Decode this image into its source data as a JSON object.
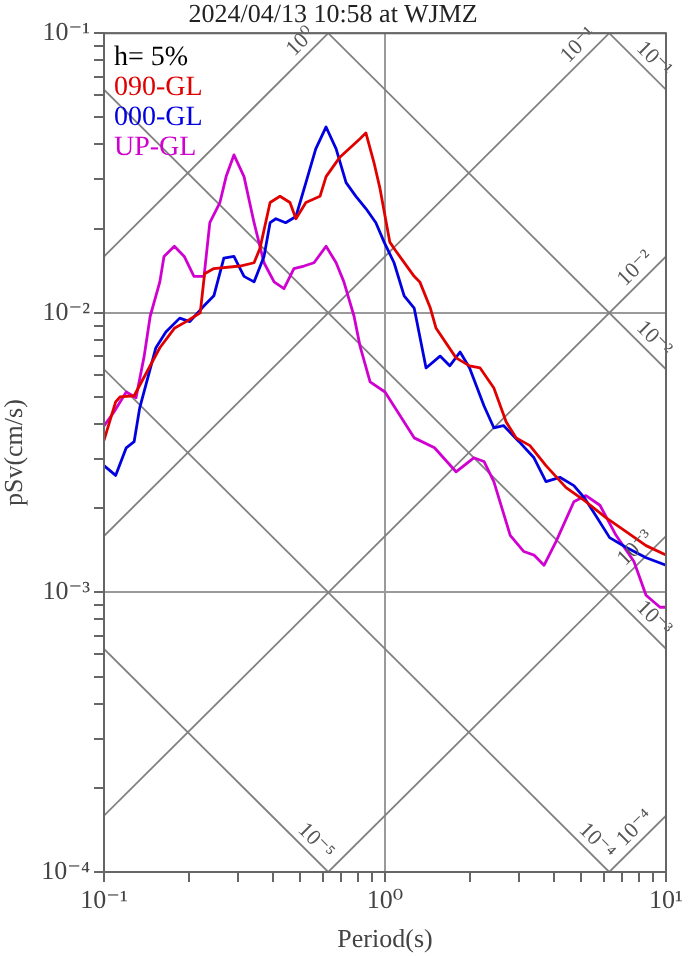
{
  "chart_data": {
    "type": "line",
    "title": "2024/04/13 10:58 at WJMZ",
    "xlabel": "Period(s)",
    "ylabel": "pSv(cm/s)",
    "legend_title": "h= 5%",
    "legend": "top left",
    "log": "xy",
    "grid": true,
    "marker": "none",
    "line_style": "solid",
    "xlim": [
      0.1,
      10
    ],
    "ylim": [
      0.0001,
      0.1
    ],
    "xticks": [
      {
        "value": 0.1,
        "label": "10⁻¹"
      },
      {
        "value": 0.2,
        "label": null
      },
      {
        "value": 0.3,
        "label": null
      },
      {
        "value": 0.4,
        "label": null
      },
      {
        "value": 0.5,
        "label": null
      },
      {
        "value": 0.6,
        "label": null
      },
      {
        "value": 0.7,
        "label": null
      },
      {
        "value": 0.8,
        "label": null
      },
      {
        "value": 0.9,
        "label": null
      },
      {
        "value": 1,
        "label": "10⁰"
      },
      {
        "value": 2,
        "label": null
      },
      {
        "value": 3,
        "label": null
      },
      {
        "value": 4,
        "label": null
      },
      {
        "value": 5,
        "label": null
      },
      {
        "value": 6,
        "label": null
      },
      {
        "value": 7,
        "label": null
      },
      {
        "value": 8,
        "label": null
      },
      {
        "value": 9,
        "label": null
      },
      {
        "value": 10,
        "label": "10¹"
      }
    ],
    "yticks": [
      {
        "value": 0.0001,
        "label": "10⁻⁴"
      },
      {
        "value": 0.0002,
        "label": null
      },
      {
        "value": 0.0003,
        "label": null
      },
      {
        "value": 0.0004,
        "label": null
      },
      {
        "value": 0.0005,
        "label": null
      },
      {
        "value": 0.0006,
        "label": null
      },
      {
        "value": 0.0007,
        "label": null
      },
      {
        "value": 0.0008,
        "label": null
      },
      {
        "value": 0.0009,
        "label": null
      },
      {
        "value": 0.001,
        "label": "10⁻³"
      },
      {
        "value": 0.002,
        "label": null
      },
      {
        "value": 0.003,
        "label": null
      },
      {
        "value": 0.004,
        "label": null
      },
      {
        "value": 0.005,
        "label": null
      },
      {
        "value": 0.006,
        "label": null
      },
      {
        "value": 0.007,
        "label": null
      },
      {
        "value": 0.008,
        "label": null
      },
      {
        "value": 0.009,
        "label": null
      },
      {
        "value": 0.01,
        "label": "10⁻²"
      },
      {
        "value": 0.02,
        "label": null
      },
      {
        "value": 0.03,
        "label": null
      },
      {
        "value": 0.04,
        "label": null
      },
      {
        "value": 0.05,
        "label": null
      },
      {
        "value": 0.06,
        "label": null
      },
      {
        "value": 0.07,
        "label": null
      },
      {
        "value": 0.08,
        "label": null
      },
      {
        "value": 0.09,
        "label": null
      },
      {
        "value": 0.1,
        "label": "10⁻¹"
      }
    ],
    "series": [
      {
        "name": "090-GL",
        "color": "#e00000",
        "x": [
          0.1,
          0.11,
          0.114,
          0.128,
          0.158,
          0.178,
          0.196,
          0.22,
          0.228,
          0.246,
          0.305,
          0.342,
          0.359,
          0.39,
          0.423,
          0.459,
          0.482,
          0.523,
          0.587,
          0.617,
          0.692,
          0.815,
          0.855,
          0.914,
          0.96,
          1.04,
          1.09,
          1.27,
          1.33,
          1.45,
          1.52,
          1.79,
          2.0,
          2.18,
          2.44,
          2.7,
          2.93,
          3.28,
          3.74,
          4.41,
          5.19,
          6.11,
          7.21,
          8.49,
          10
        ],
        "values": [
          0.0035,
          0.0048,
          0.005,
          0.00505,
          0.0075,
          0.0088,
          0.0093,
          0.01,
          0.0138,
          0.0144,
          0.0147,
          0.0151,
          0.017,
          0.0248,
          0.0261,
          0.0248,
          0.0217,
          0.0248,
          0.0261,
          0.0307,
          0.0361,
          0.0419,
          0.044,
          0.0344,
          0.0278,
          0.0179,
          0.0167,
          0.0135,
          0.0129,
          0.0104,
          0.0088,
          0.0069,
          0.00646,
          0.00635,
          0.00538,
          0.00407,
          0.00357,
          0.00335,
          0.00284,
          0.00237,
          0.00211,
          0.00185,
          0.00165,
          0.00147,
          0.00136
        ]
      },
      {
        "name": "000-GL",
        "color": "#0000e0",
        "x": [
          0.1,
          0.11,
          0.12,
          0.128,
          0.134,
          0.153,
          0.166,
          0.186,
          0.202,
          0.227,
          0.246,
          0.267,
          0.29,
          0.315,
          0.342,
          0.371,
          0.39,
          0.409,
          0.443,
          0.482,
          0.523,
          0.567,
          0.617,
          0.67,
          0.727,
          0.788,
          0.855,
          0.928,
          0.993,
          1.077,
          1.17,
          1.27,
          1.4,
          1.57,
          1.7,
          1.85,
          2.0,
          2.25,
          2.44,
          2.64,
          3.0,
          3.39,
          3.74,
          4.19,
          4.7,
          5.12,
          5.5,
          6.3,
          7.2,
          8.5,
          10
        ],
        "values": [
          0.00284,
          0.00262,
          0.00329,
          0.00346,
          0.00457,
          0.0075,
          0.00853,
          0.00957,
          0.0093,
          0.0106,
          0.0115,
          0.0157,
          0.0159,
          0.0135,
          0.0129,
          0.0159,
          0.021,
          0.0217,
          0.021,
          0.0221,
          0.0292,
          0.0386,
          0.0462,
          0.0386,
          0.0292,
          0.0261,
          0.0236,
          0.021,
          0.0179,
          0.0151,
          0.0115,
          0.0104,
          0.00635,
          0.007,
          0.00646,
          0.00724,
          0.00635,
          0.00465,
          0.00388,
          0.00395,
          0.00346,
          0.00303,
          0.00249,
          0.00258,
          0.00241,
          0.00218,
          0.00195,
          0.00157,
          0.00145,
          0.00133,
          0.00125
        ]
      },
      {
        "name": "UP-GL",
        "color": "#d000d0",
        "x": [
          0.1,
          0.1085,
          0.12,
          0.13,
          0.139,
          0.146,
          0.158,
          0.1635,
          0.178,
          0.193,
          0.209,
          0.227,
          0.238,
          0.2585,
          0.272,
          0.29,
          0.315,
          0.342,
          0.371,
          0.403,
          0.437,
          0.474,
          0.515,
          0.559,
          0.617,
          0.67,
          0.714,
          0.776,
          0.815,
          0.885,
          1.0,
          1.27,
          1.5,
          1.79,
          2.07,
          2.25,
          2.44,
          2.79,
          3.12,
          3.39,
          3.68,
          4.06,
          4.7,
          5.19,
          5.82,
          6.64,
          7.69,
          8.49,
          9.52,
          10
        ],
        "values": [
          0.00394,
          0.00442,
          0.00521,
          0.00497,
          0.007,
          0.00972,
          0.0129,
          0.0159,
          0.0173,
          0.0159,
          0.0135,
          0.0135,
          0.021,
          0.0248,
          0.0307,
          0.0367,
          0.0307,
          0.021,
          0.0151,
          0.0129,
          0.0122,
          0.0144,
          0.0147,
          0.0151,
          0.0173,
          0.0151,
          0.0129,
          0.00972,
          0.0076,
          0.00566,
          0.00521,
          0.00357,
          0.00329,
          0.0027,
          0.00303,
          0.00294,
          0.00249,
          0.0016,
          0.0014,
          0.00136,
          0.00125,
          0.00152,
          0.00211,
          0.00222,
          0.00205,
          0.0016,
          0.00129,
          0.000977,
          0.000885,
          0.000885
        ]
      },
      {
        "name": "10⁰",
        "color": "#808080",
        "x": [
          0.1,
          0.628
        ],
        "values": [
          0.0159,
          0.1
        ]
      },
      {
        "name": "10⁻¹",
        "color": "#808080",
        "x": [
          0.1,
          6.28
        ],
        "values": [
          0.00159,
          0.1
        ]
      },
      {
        "name": "10⁻²",
        "color": "#808080",
        "x": [
          0.1,
          10
        ],
        "values": [
          0.000159,
          0.0159
        ]
      },
      {
        "name": "10⁻³",
        "color": "#808080",
        "x": [
          0.628,
          10
        ],
        "values": [
          0.0001,
          0.00159
        ]
      },
      {
        "name": "10⁻⁴",
        "color": "#808080",
        "x": [
          6.28,
          10
        ],
        "values": [
          0.0001,
          0.000159
        ]
      },
      {
        "name": "10⁻¹",
        "color": "#808080",
        "x": [
          6.28,
          10
        ],
        "values": [
          0.1,
          0.0628
        ]
      },
      {
        "name": "10⁻²",
        "color": "#808080",
        "x": [
          0.628,
          10
        ],
        "values": [
          0.1,
          0.00628
        ]
      },
      {
        "name": "10⁻³",
        "color": "#808080",
        "x": [
          0.1,
          10
        ],
        "values": [
          0.0628,
          0.000628
        ]
      },
      {
        "name": "10⁻⁴",
        "color": "#808080",
        "x": [
          0.1,
          6.28
        ],
        "values": [
          0.00628,
          0.0001
        ]
      },
      {
        "name": "10⁻⁵",
        "color": "#808080",
        "x": [
          0.1,
          0.628
        ],
        "values": [
          0.000628,
          0.0001
        ]
      }
    ]
  }
}
